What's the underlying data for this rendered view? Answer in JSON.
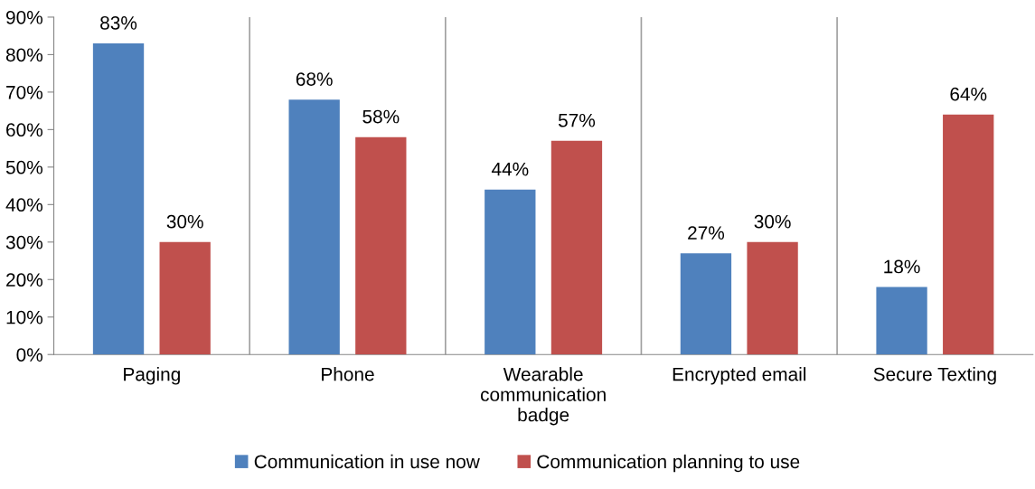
{
  "chart_data": {
    "type": "bar",
    "categories": [
      "Paging",
      "Phone",
      "Wearable\ncommunication\nbadge",
      "Encrypted email",
      "Secure Texting"
    ],
    "series": [
      {
        "name": "Communication in use now",
        "color": "#4f81bd",
        "values": [
          83,
          68,
          44,
          27,
          18
        ],
        "value_labels": [
          "83%",
          "68%",
          "44%",
          "27%",
          "18%"
        ]
      },
      {
        "name": "Communication planning to use",
        "color": "#c0504d",
        "values": [
          30,
          58,
          57,
          30,
          64
        ],
        "value_labels": [
          "30%",
          "58%",
          "57%",
          "30%",
          "64%"
        ]
      }
    ],
    "ylim": [
      0,
      90
    ],
    "yticks": [
      {
        "value": 0,
        "label": "0%"
      },
      {
        "value": 10,
        "label": "10%"
      },
      {
        "value": 20,
        "label": "20%"
      },
      {
        "value": 30,
        "label": "30%"
      },
      {
        "value": 40,
        "label": "40%"
      },
      {
        "value": 50,
        "label": "50%"
      },
      {
        "value": 60,
        "label": "60%"
      },
      {
        "value": 70,
        "label": "70%"
      },
      {
        "value": 80,
        "label": "80%"
      },
      {
        "value": 90,
        "label": "90%"
      }
    ],
    "grid": "x",
    "legend": "bottom"
  }
}
